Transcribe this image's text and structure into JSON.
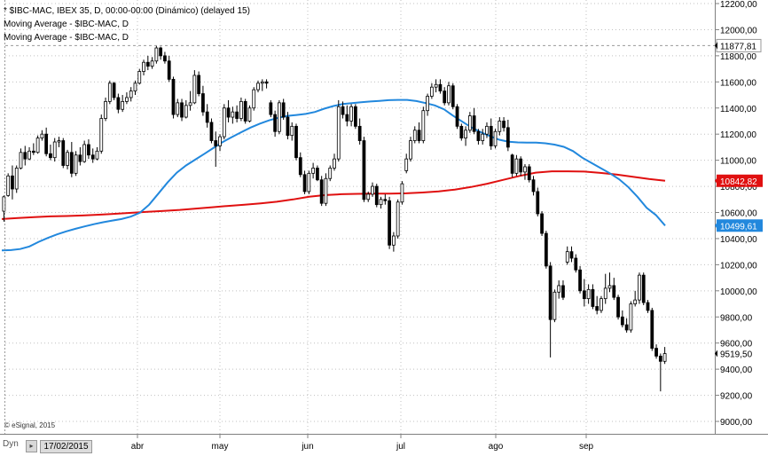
{
  "header": {
    "line1": "* $IBC-MAC, IBEX 35, D, 00:00-00:00 (Dinámico) (delayed 15)",
    "line2": "Moving Average - $IBC-MAC, D",
    "line3": "Moving Average - $IBC-MAC, D"
  },
  "credit": "© eSignal, 2015",
  "footer": {
    "mode": "Dyn",
    "nav_icon": "calendar-arrow-icon",
    "date": "17/02/2015"
  },
  "colors": {
    "up": "#ffffff",
    "down": "#000000",
    "ma_long": "#e01010",
    "ma_short": "#2288dd",
    "grid": "#c0c0c0"
  },
  "chart_data": {
    "type": "candlestick",
    "y_axis": {
      "ticks": [
        "12200,00",
        "12000,00",
        "11800,00",
        "11600,00",
        "11400,00",
        "11200,00",
        "11000,00",
        "10800,00",
        "10600,00",
        "10400,00",
        "10200,00",
        "10000,00",
        "9800,00",
        "9600,00",
        "9400,00",
        "9200,00",
        "9000,00"
      ],
      "range": [
        8920,
        12220
      ]
    },
    "x_axis": {
      "labels": [
        "abr",
        "may",
        "jun",
        "jul",
        "ago",
        "sep"
      ]
    },
    "price_labels": [
      {
        "label": "11877,81",
        "value": 11877.81,
        "style": "dashed-line"
      },
      {
        "label": "10842,82",
        "value": 10842.82,
        "style": "red-badge"
      },
      {
        "label": "10499,61",
        "value": 10499.61,
        "style": "blue-badge"
      },
      {
        "label": "9519,50",
        "value": 9519.5,
        "style": "plain"
      }
    ],
    "candles": [
      {
        "o": 10610,
        "h": 10730,
        "l": 10530,
        "c": 10720
      },
      {
        "o": 10730,
        "h": 10900,
        "l": 10720,
        "c": 10880
      },
      {
        "o": 10880,
        "h": 10960,
        "l": 10700,
        "c": 10780
      },
      {
        "o": 10780,
        "h": 10960,
        "l": 10750,
        "c": 10940
      },
      {
        "o": 10940,
        "h": 11090,
        "l": 10930,
        "c": 11060
      },
      {
        "o": 11060,
        "h": 11110,
        "l": 10960,
        "c": 11010
      },
      {
        "o": 11010,
        "h": 11100,
        "l": 11000,
        "c": 11070
      },
      {
        "o": 11070,
        "h": 11130,
        "l": 11040,
        "c": 11060
      },
      {
        "o": 11060,
        "h": 11190,
        "l": 11050,
        "c": 11170
      },
      {
        "o": 11170,
        "h": 11230,
        "l": 11150,
        "c": 11200
      },
      {
        "o": 11200,
        "h": 11250,
        "l": 11030,
        "c": 11050
      },
      {
        "o": 11050,
        "h": 11120,
        "l": 11000,
        "c": 11020
      },
      {
        "o": 11020,
        "h": 11170,
        "l": 10990,
        "c": 11140
      },
      {
        "o": 11140,
        "h": 11180,
        "l": 11100,
        "c": 11150
      },
      {
        "o": 11150,
        "h": 11170,
        "l": 10940,
        "c": 10960
      },
      {
        "o": 10960,
        "h": 11080,
        "l": 10930,
        "c": 11060
      },
      {
        "o": 11060,
        "h": 11140,
        "l": 10870,
        "c": 10900
      },
      {
        "o": 10900,
        "h": 11070,
        "l": 10880,
        "c": 11040
      },
      {
        "o": 11040,
        "h": 11100,
        "l": 10960,
        "c": 10990
      },
      {
        "o": 10990,
        "h": 11150,
        "l": 10980,
        "c": 11120
      },
      {
        "o": 11120,
        "h": 11160,
        "l": 11010,
        "c": 11040
      },
      {
        "o": 11040,
        "h": 11090,
        "l": 10980,
        "c": 11010
      },
      {
        "o": 11010,
        "h": 11100,
        "l": 11000,
        "c": 11070
      },
      {
        "o": 11070,
        "h": 11350,
        "l": 11050,
        "c": 11320
      },
      {
        "o": 11320,
        "h": 11480,
        "l": 11300,
        "c": 11450
      },
      {
        "o": 11450,
        "h": 11610,
        "l": 11430,
        "c": 11590
      },
      {
        "o": 11590,
        "h": 11600,
        "l": 11460,
        "c": 11480
      },
      {
        "o": 11480,
        "h": 11510,
        "l": 11360,
        "c": 11390
      },
      {
        "o": 11390,
        "h": 11500,
        "l": 11370,
        "c": 11450
      },
      {
        "o": 11450,
        "h": 11520,
        "l": 11430,
        "c": 11480
      },
      {
        "o": 11480,
        "h": 11560,
        "l": 11450,
        "c": 11530
      },
      {
        "o": 11530,
        "h": 11610,
        "l": 11500,
        "c": 11590
      },
      {
        "o": 11590,
        "h": 11700,
        "l": 11580,
        "c": 11680
      },
      {
        "o": 11680,
        "h": 11770,
        "l": 11650,
        "c": 11750
      },
      {
        "o": 11750,
        "h": 11800,
        "l": 11690,
        "c": 11720
      },
      {
        "o": 11720,
        "h": 11790,
        "l": 11700,
        "c": 11760
      },
      {
        "o": 11760,
        "h": 11880,
        "l": 11740,
        "c": 11860
      },
      {
        "o": 11860,
        "h": 11870,
        "l": 11770,
        "c": 11800
      },
      {
        "o": 11800,
        "h": 11830,
        "l": 11740,
        "c": 11760
      },
      {
        "o": 11760,
        "h": 11800,
        "l": 11600,
        "c": 11620
      },
      {
        "o": 11620,
        "h": 11640,
        "l": 11320,
        "c": 11350
      },
      {
        "o": 11350,
        "h": 11470,
        "l": 11330,
        "c": 11440
      },
      {
        "o": 11440,
        "h": 11470,
        "l": 11300,
        "c": 11330
      },
      {
        "o": 11330,
        "h": 11460,
        "l": 11320,
        "c": 11420
      },
      {
        "o": 11420,
        "h": 11530,
        "l": 11380,
        "c": 11440
      },
      {
        "o": 11440,
        "h": 11690,
        "l": 11430,
        "c": 11650
      },
      {
        "o": 11650,
        "h": 11680,
        "l": 11490,
        "c": 11510
      },
      {
        "o": 11510,
        "h": 11570,
        "l": 11340,
        "c": 11370
      },
      {
        "o": 11370,
        "h": 11430,
        "l": 11250,
        "c": 11290
      },
      {
        "o": 11290,
        "h": 11320,
        "l": 11130,
        "c": 11150
      },
      {
        "o": 11150,
        "h": 11220,
        "l": 10950,
        "c": 11110
      },
      {
        "o": 11110,
        "h": 11200,
        "l": 11070,
        "c": 11180
      },
      {
        "o": 11180,
        "h": 11430,
        "l": 11160,
        "c": 11400
      },
      {
        "o": 11400,
        "h": 11460,
        "l": 11290,
        "c": 11330
      },
      {
        "o": 11330,
        "h": 11410,
        "l": 11280,
        "c": 11370
      },
      {
        "o": 11370,
        "h": 11420,
        "l": 11290,
        "c": 11320
      },
      {
        "o": 11320,
        "h": 11480,
        "l": 11300,
        "c": 11450
      },
      {
        "o": 11450,
        "h": 11470,
        "l": 11280,
        "c": 11300
      },
      {
        "o": 11300,
        "h": 11420,
        "l": 11290,
        "c": 11400
      },
      {
        "o": 11400,
        "h": 11560,
        "l": 11380,
        "c": 11540
      },
      {
        "o": 11540,
        "h": 11610,
        "l": 11520,
        "c": 11590
      },
      {
        "o": 11590,
        "h": 11620,
        "l": 11530,
        "c": 11600
      },
      {
        "o": 11600,
        "h": 11620,
        "l": 11550,
        "c": 11590
      },
      {
        "o": 11440,
        "h": 11460,
        "l": 11330,
        "c": 11350
      },
      {
        "o": 11350,
        "h": 11380,
        "l": 11180,
        "c": 11220
      },
      {
        "o": 11220,
        "h": 11460,
        "l": 11200,
        "c": 11440
      },
      {
        "o": 11440,
        "h": 11470,
        "l": 11310,
        "c": 11330
      },
      {
        "o": 11330,
        "h": 11370,
        "l": 11160,
        "c": 11190
      },
      {
        "o": 11190,
        "h": 11290,
        "l": 11150,
        "c": 11260
      },
      {
        "o": 11260,
        "h": 11280,
        "l": 11000,
        "c": 11020
      },
      {
        "o": 11020,
        "h": 11060,
        "l": 10870,
        "c": 10890
      },
      {
        "o": 10890,
        "h": 10920,
        "l": 10740,
        "c": 10760
      },
      {
        "o": 10760,
        "h": 10920,
        "l": 10740,
        "c": 10900
      },
      {
        "o": 10900,
        "h": 10980,
        "l": 10860,
        "c": 10940
      },
      {
        "o": 10940,
        "h": 10960,
        "l": 10840,
        "c": 10850
      },
      {
        "o": 10850,
        "h": 10880,
        "l": 10650,
        "c": 10670
      },
      {
        "o": 10670,
        "h": 10900,
        "l": 10650,
        "c": 10860
      },
      {
        "o": 10860,
        "h": 10960,
        "l": 10840,
        "c": 10940
      },
      {
        "o": 10940,
        "h": 11050,
        "l": 10920,
        "c": 11010
      },
      {
        "o": 11010,
        "h": 11460,
        "l": 10990,
        "c": 11410
      },
      {
        "o": 11410,
        "h": 11450,
        "l": 11320,
        "c": 11350
      },
      {
        "o": 11350,
        "h": 11420,
        "l": 11260,
        "c": 11300
      },
      {
        "o": 11300,
        "h": 11430,
        "l": 11260,
        "c": 11410
      },
      {
        "o": 11410,
        "h": 11430,
        "l": 11240,
        "c": 11260
      },
      {
        "o": 11260,
        "h": 11320,
        "l": 11120,
        "c": 11150
      },
      {
        "o": 11150,
        "h": 11180,
        "l": 10680,
        "c": 10700
      },
      {
        "o": 10700,
        "h": 10760,
        "l": 10680,
        "c": 10740
      },
      {
        "o": 10740,
        "h": 10830,
        "l": 10720,
        "c": 10800
      },
      {
        "o": 10800,
        "h": 10820,
        "l": 10640,
        "c": 10660
      },
      {
        "o": 10660,
        "h": 10720,
        "l": 10630,
        "c": 10700
      },
      {
        "o": 10700,
        "h": 10740,
        "l": 10660,
        "c": 10690
      },
      {
        "o": 10690,
        "h": 10720,
        "l": 10320,
        "c": 10350
      },
      {
        "o": 10350,
        "h": 10450,
        "l": 10300,
        "c": 10420
      },
      {
        "o": 10420,
        "h": 10700,
        "l": 10400,
        "c": 10680
      },
      {
        "o": 10680,
        "h": 10840,
        "l": 10660,
        "c": 10820
      },
      {
        "o": 10920,
        "h": 11050,
        "l": 10900,
        "c": 11010
      },
      {
        "o": 11010,
        "h": 11180,
        "l": 10990,
        "c": 11150
      },
      {
        "o": 11150,
        "h": 11260,
        "l": 11130,
        "c": 11230
      },
      {
        "o": 11230,
        "h": 11290,
        "l": 11130,
        "c": 11150
      },
      {
        "o": 11150,
        "h": 11410,
        "l": 11130,
        "c": 11380
      },
      {
        "o": 11380,
        "h": 11510,
        "l": 11340,
        "c": 11490
      },
      {
        "o": 11490,
        "h": 11590,
        "l": 11470,
        "c": 11560
      },
      {
        "o": 11560,
        "h": 11620,
        "l": 11520,
        "c": 11580
      },
      {
        "o": 11580,
        "h": 11620,
        "l": 11510,
        "c": 11530
      },
      {
        "o": 11530,
        "h": 11560,
        "l": 11420,
        "c": 11440
      },
      {
        "o": 11440,
        "h": 11600,
        "l": 11420,
        "c": 11570
      },
      {
        "o": 11570,
        "h": 11590,
        "l": 11390,
        "c": 11410
      },
      {
        "o": 11410,
        "h": 11430,
        "l": 11240,
        "c": 11260
      },
      {
        "o": 11260,
        "h": 11280,
        "l": 11150,
        "c": 11170
      },
      {
        "o": 11170,
        "h": 11260,
        "l": 11110,
        "c": 11230
      },
      {
        "o": 11230,
        "h": 11370,
        "l": 11210,
        "c": 11340
      },
      {
        "o": 11340,
        "h": 11400,
        "l": 11200,
        "c": 11220
      },
      {
        "o": 11220,
        "h": 11240,
        "l": 11120,
        "c": 11150
      },
      {
        "o": 11150,
        "h": 11240,
        "l": 11120,
        "c": 11200
      },
      {
        "o": 11200,
        "h": 11290,
        "l": 11170,
        "c": 11260
      },
      {
        "o": 11260,
        "h": 11320,
        "l": 11080,
        "c": 11110
      },
      {
        "o": 11110,
        "h": 11240,
        "l": 11090,
        "c": 11220
      },
      {
        "o": 11220,
        "h": 11330,
        "l": 11190,
        "c": 11300
      },
      {
        "o": 11300,
        "h": 11330,
        "l": 11220,
        "c": 11250
      },
      {
        "o": 11250,
        "h": 11310,
        "l": 11070,
        "c": 11100
      },
      {
        "o": 11040,
        "h": 11050,
        "l": 10870,
        "c": 10900
      },
      {
        "o": 10900,
        "h": 11040,
        "l": 10880,
        "c": 11010
      },
      {
        "o": 11010,
        "h": 11030,
        "l": 10880,
        "c": 10910
      },
      {
        "o": 10910,
        "h": 10970,
        "l": 10850,
        "c": 10950
      },
      {
        "o": 10950,
        "h": 10970,
        "l": 10830,
        "c": 10850
      },
      {
        "o": 10850,
        "h": 10880,
        "l": 10730,
        "c": 10760
      },
      {
        "o": 10760,
        "h": 10790,
        "l": 10570,
        "c": 10590
      },
      {
        "o": 10590,
        "h": 10610,
        "l": 10420,
        "c": 10440
      },
      {
        "o": 10440,
        "h": 10460,
        "l": 10170,
        "c": 10190
      },
      {
        "o": 10190,
        "h": 10220,
        "l": 9490,
        "c": 9780
      },
      {
        "o": 9780,
        "h": 10010,
        "l": 9760,
        "c": 9990
      },
      {
        "o": 9990,
        "h": 10080,
        "l": 9940,
        "c": 10040
      },
      {
        "o": 10040,
        "h": 10080,
        "l": 9930,
        "c": 9950
      },
      {
        "o": 10220,
        "h": 10340,
        "l": 10200,
        "c": 10300
      },
      {
        "o": 10300,
        "h": 10340,
        "l": 10220,
        "c": 10250
      },
      {
        "o": 10250,
        "h": 10280,
        "l": 10140,
        "c": 10160
      },
      {
        "o": 10160,
        "h": 10190,
        "l": 9980,
        "c": 10000
      },
      {
        "o": 10000,
        "h": 10090,
        "l": 9880,
        "c": 9940
      },
      {
        "o": 9940,
        "h": 10050,
        "l": 9900,
        "c": 10010
      },
      {
        "o": 10010,
        "h": 10050,
        "l": 9860,
        "c": 9880
      },
      {
        "o": 9880,
        "h": 9960,
        "l": 9820,
        "c": 9850
      },
      {
        "o": 9850,
        "h": 9960,
        "l": 9830,
        "c": 9940
      },
      {
        "o": 9940,
        "h": 10130,
        "l": 9900,
        "c": 10020
      },
      {
        "o": 10020,
        "h": 10140,
        "l": 9990,
        "c": 10040
      },
      {
        "o": 10040,
        "h": 10100,
        "l": 9930,
        "c": 9950
      },
      {
        "o": 9950,
        "h": 9970,
        "l": 9780,
        "c": 9800
      },
      {
        "o": 9800,
        "h": 9850,
        "l": 9720,
        "c": 9740
      },
      {
        "o": 9740,
        "h": 9790,
        "l": 9680,
        "c": 9700
      },
      {
        "o": 9700,
        "h": 9920,
        "l": 9680,
        "c": 9900
      },
      {
        "o": 9900,
        "h": 10000,
        "l": 9880,
        "c": 9930
      },
      {
        "o": 9930,
        "h": 10140,
        "l": 9900,
        "c": 10120
      },
      {
        "o": 10120,
        "h": 10140,
        "l": 9890,
        "c": 9910
      },
      {
        "o": 9910,
        "h": 9930,
        "l": 9830,
        "c": 9850
      },
      {
        "o": 9850,
        "h": 9870,
        "l": 9540,
        "c": 9560
      },
      {
        "o": 9560,
        "h": 9590,
        "l": 9480,
        "c": 9500
      },
      {
        "o": 9500,
        "h": 9520,
        "l": 9230,
        "c": 9460
      },
      {
        "o": 9460,
        "h": 9570,
        "l": 9440,
        "c": 9519.5
      }
    ],
    "ma_short": [
      10310,
      10312,
      10320,
      10340,
      10375,
      10405,
      10432,
      10455,
      10475,
      10493,
      10510,
      10525,
      10538,
      10550,
      10568,
      10598,
      10660,
      10745,
      10830,
      10905,
      10960,
      11005,
      11050,
      11095,
      11140,
      11178,
      11215,
      11250,
      11280,
      11305,
      11325,
      11340,
      11347,
      11355,
      11370,
      11395,
      11415,
      11430,
      11437,
      11444,
      11450,
      11455,
      11460,
      11462,
      11462,
      11453,
      11438,
      11420,
      11390,
      11340,
      11295,
      11250,
      11215,
      11185,
      11157,
      11142,
      11137,
      11135,
      11135,
      11130,
      11120,
      11103,
      11070,
      11020,
      10980,
      10940,
      10900,
      10855,
      10795,
      10720,
      10635,
      10580,
      10499.61
    ],
    "ma_long": [
      10550,
      10557,
      10565,
      10570,
      10573,
      10577,
      10583,
      10590,
      10597,
      10605,
      10612,
      10620,
      10630,
      10640,
      10650,
      10660,
      10670,
      10682,
      10700,
      10720,
      10733,
      10740,
      10743,
      10744,
      10745,
      10747,
      10753,
      10762,
      10775,
      10795,
      10820,
      10850,
      10880,
      10905,
      10915,
      10915,
      10913,
      10903,
      10890,
      10873,
      10856,
      10842.82
    ]
  }
}
